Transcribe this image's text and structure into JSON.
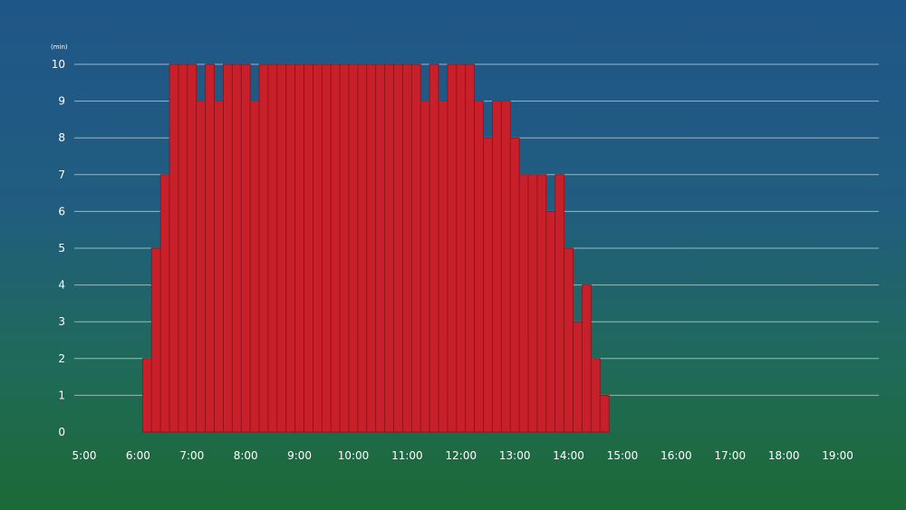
{
  "chart_data": {
    "type": "bar",
    "title": "",
    "xlabel": "",
    "ylabel": "(min)",
    "ylim": [
      0,
      10
    ],
    "yticks": [
      "0",
      "1",
      "2",
      "3",
      "4",
      "5",
      "6",
      "7",
      "8",
      "9",
      "10"
    ],
    "xticks": [
      "5:00",
      "6:00",
      "7:00",
      "8:00",
      "9:00",
      "10:00",
      "11:00",
      "12:00",
      "13:00",
      "14:00",
      "15:00",
      "16:00",
      "17:00",
      "18:00",
      "19:00"
    ],
    "grid": true,
    "colors": {
      "bar": "#c8202a",
      "bar_edge": "#8a1218",
      "grid": "#ffffff"
    },
    "bar_interval_minutes": 10,
    "series": [
      {
        "start_times": [
          "6:05",
          "6:15",
          "6:25",
          "6:35",
          "6:45",
          "6:55",
          "7:05",
          "7:15",
          "7:25",
          "7:35",
          "7:45",
          "7:55",
          "8:05",
          "8:15",
          "8:25",
          "8:35",
          "8:45",
          "8:55",
          "9:05",
          "9:15",
          "9:25",
          "9:35",
          "9:45",
          "9:55",
          "10:05",
          "10:15",
          "10:25",
          "10:35",
          "10:45",
          "10:55",
          "11:05",
          "11:15",
          "11:25",
          "11:35",
          "11:45",
          "11:55",
          "12:05",
          "12:15",
          "12:25",
          "12:35",
          "12:45",
          "12:55",
          "13:05",
          "13:15",
          "13:25",
          "13:35",
          "13:45",
          "13:55",
          "14:05",
          "14:15",
          "14:25",
          "14:35"
        ],
        "values": [
          2,
          5,
          7,
          10,
          10,
          10,
          9,
          10,
          9,
          10,
          10,
          10,
          9,
          10,
          10,
          10,
          10,
          10,
          10,
          10,
          10,
          10,
          10,
          10,
          10,
          10,
          10,
          10,
          10,
          10,
          10,
          9,
          10,
          9,
          10,
          10,
          10,
          9,
          8,
          9,
          9,
          8,
          7,
          7,
          7,
          6,
          7,
          5,
          3,
          4,
          2,
          1
        ]
      }
    ]
  }
}
